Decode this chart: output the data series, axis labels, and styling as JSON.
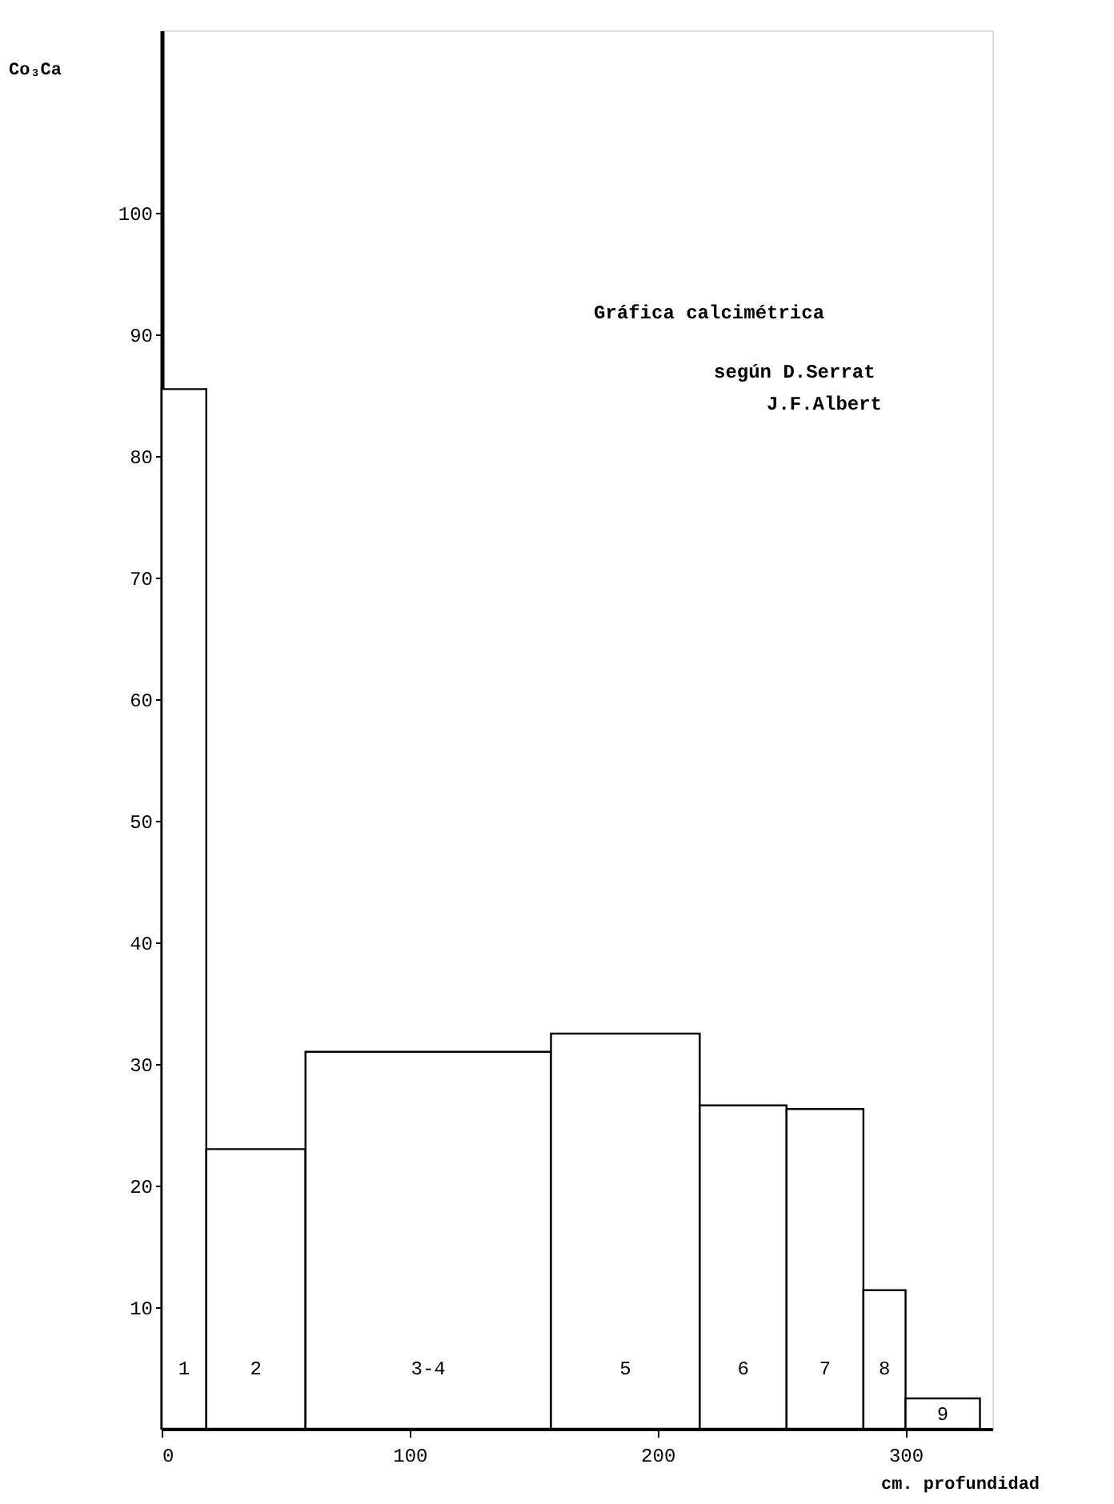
{
  "chart_data": {
    "type": "histogram",
    "title": "Gráfica calcimétrica",
    "bins": [
      0,
      18,
      58,
      157,
      217,
      252,
      283,
      300,
      330
    ],
    "values": [
      85.5,
      23,
      31,
      32.5,
      26.6,
      26.3,
      11.4,
      2.5
    ],
    "color": "#ffffff",
    "xlabel": "cm. profundidad",
    "ylabel": "Co₃Ca",
    "xlim": [
      0,
      335
    ],
    "xticks": [
      0,
      100,
      200,
      300
    ],
    "ylim": [
      0,
      115
    ],
    "yticks": [
      10,
      20,
      30,
      40,
      50,
      60,
      70,
      80,
      90,
      100
    ],
    "grid": false,
    "annotations": [
      "según D.Serrat",
      "J.F.Albert",
      "1",
      "2",
      "3-4",
      "5",
      "6",
      "7",
      "8",
      "9"
    ]
  }
}
